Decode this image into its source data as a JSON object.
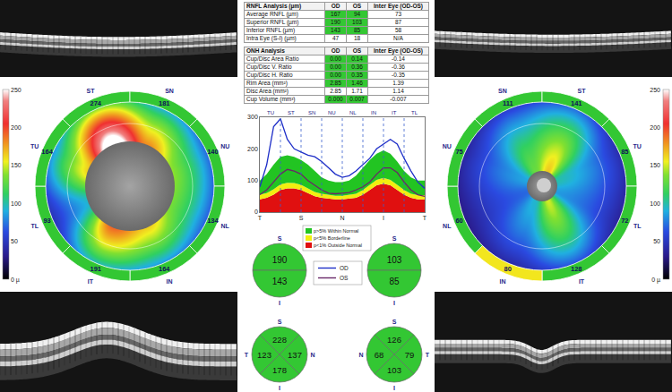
{
  "rnfl_table": {
    "header": [
      "RNFL Analysis (µm)",
      "OD",
      "OS",
      "Inter Eye (OD-OS)"
    ],
    "rows": [
      {
        "label": "Average RNFL (µm)",
        "cells": [
          {
            "text": "167",
            "status": "normal"
          },
          {
            "text": "94",
            "status": "normal"
          },
          {
            "text": "73"
          }
        ]
      },
      {
        "label": "Superior RNFL (µm)",
        "cells": [
          {
            "text": "190",
            "status": "normal"
          },
          {
            "text": "103",
            "status": "normal"
          },
          {
            "text": "87"
          }
        ]
      },
      {
        "label": "Inferior RNFL (µm)",
        "cells": [
          {
            "text": "143",
            "status": "normal"
          },
          {
            "text": "85",
            "status": "normal"
          },
          {
            "text": "58"
          }
        ]
      },
      {
        "label": "Intra Eye (S-I) (µm)",
        "cells": [
          {
            "text": "47"
          },
          {
            "text": "18"
          },
          {
            "text": "N/A"
          }
        ]
      }
    ]
  },
  "onh_table": {
    "header": [
      "ONH Analysis",
      "OD",
      "OS",
      "Inter Eye (OD-OS)"
    ],
    "rows": [
      {
        "label": "Cup/Disc Area Ratio",
        "cells": [
          {
            "text": "0.00",
            "status": "normal"
          },
          {
            "text": "0.14",
            "status": "normal"
          },
          {
            "text": "-0.14"
          }
        ]
      },
      {
        "label": "Cup/Disc V. Ratio",
        "cells": [
          {
            "text": "0.00",
            "status": "normal"
          },
          {
            "text": "0.36",
            "status": "normal"
          },
          {
            "text": "-0.36"
          }
        ]
      },
      {
        "label": "Cup/Disc H. Ratio",
        "cells": [
          {
            "text": "0.00",
            "status": "normal"
          },
          {
            "text": "0.35",
            "status": "normal"
          },
          {
            "text": "-0.35"
          }
        ]
      },
      {
        "label": "Rim Area (mm²)",
        "cells": [
          {
            "text": "2.85",
            "status": "normal"
          },
          {
            "text": "1.46",
            "status": "normal"
          },
          {
            "text": "1.39"
          }
        ]
      },
      {
        "label": "Disc Area (mm²)",
        "cells": [
          {
            "text": "2.85"
          },
          {
            "text": "1.71"
          },
          {
            "text": "1.14"
          }
        ]
      },
      {
        "label": "Cup Volume (mm³)",
        "cells": [
          {
            "text": "0.000",
            "status": "normal"
          },
          {
            "text": "0.007",
            "status": "normal"
          },
          {
            "text": "-0.007"
          }
        ]
      }
    ]
  },
  "color_scale": {
    "range": [
      0,
      250
    ],
    "ticks": [
      250,
      200,
      150,
      100,
      50,
      {
        "value": 0,
        "label": "0 µ"
      }
    ]
  },
  "thickness_maps": [
    {
      "sectors": [
        {
          "label": "ST",
          "value": 274,
          "status": "normal"
        },
        {
          "label": "SN",
          "value": 181,
          "status": "normal"
        },
        {
          "label": "NU",
          "value": 140,
          "status": "normal"
        },
        {
          "label": "NL",
          "value": 134,
          "status": "normal"
        },
        {
          "label": "IN",
          "value": 164,
          "status": "normal"
        },
        {
          "label": "IT",
          "value": 191,
          "status": "normal"
        },
        {
          "label": "TL",
          "value": 93,
          "status": "normal"
        },
        {
          "label": "TU",
          "value": 164,
          "status": "normal"
        }
      ]
    },
    {
      "sectors": [
        {
          "label": "SN",
          "value": 111,
          "status": "normal"
        },
        {
          "label": "ST",
          "value": 141,
          "status": "normal"
        },
        {
          "label": "TU",
          "value": 85,
          "status": "normal"
        },
        {
          "label": "TL",
          "value": 72,
          "status": "normal"
        },
        {
          "label": "IT",
          "value": 128,
          "status": "normal"
        },
        {
          "label": "IN",
          "value": 80,
          "status": "borderline"
        },
        {
          "label": "NL",
          "value": 60,
          "status": "normal"
        },
        {
          "label": "NU",
          "value": 75,
          "status": "normal"
        }
      ]
    }
  ],
  "chart_data": {
    "type": "line",
    "x": [
      0,
      15,
      30,
      45,
      60,
      75,
      90,
      105,
      120,
      135,
      150,
      165,
      180,
      195,
      210,
      225,
      240,
      255,
      270,
      285,
      300,
      315,
      330,
      345,
      360
    ],
    "xlim": [
      0,
      360
    ],
    "xticks": [
      {
        "value": 0,
        "label": "T"
      },
      {
        "value": 90,
        "label": "S"
      },
      {
        "value": 180,
        "label": "N"
      },
      {
        "value": 270,
        "label": "I"
      },
      {
        "value": 360,
        "label": "T"
      }
    ],
    "ylim": [
      0,
      300
    ],
    "yticks": [
      0,
      100,
      200,
      300
    ],
    "grid": false,
    "legend": "bottom",
    "sectors": [
      {
        "label": "TU",
        "start": 0,
        "end": 45
      },
      {
        "label": "ST",
        "start": 45,
        "end": 90
      },
      {
        "label": "SN",
        "start": 90,
        "end": 135
      },
      {
        "label": "NU",
        "start": 135,
        "end": 180
      },
      {
        "label": "NL",
        "start": 180,
        "end": 225
      },
      {
        "label": "IN",
        "start": 225,
        "end": 270
      },
      {
        "label": "IT",
        "start": 270,
        "end": 315
      },
      {
        "label": "TL",
        "start": 315,
        "end": 360
      }
    ],
    "series": [
      {
        "name": "p<1% Outside Normal",
        "type": "area",
        "color": "#e01010",
        "values": [
          40,
          45,
          55,
          70,
          75,
          75,
          70,
          60,
          50,
          45,
          42,
          40,
          40,
          42,
          45,
          55,
          70,
          85,
          90,
          85,
          70,
          55,
          45,
          40,
          40
        ]
      },
      {
        "name": "p<5% Borderline",
        "type": "area",
        "color": "#f2ee10",
        "values": [
          55,
          60,
          72,
          88,
          93,
          92,
          86,
          75,
          64,
          58,
          54,
          52,
          52,
          54,
          58,
          70,
          86,
          102,
          108,
          102,
          86,
          70,
          58,
          54,
          54
        ]
      },
      {
        "name": "p>5% Within Normal",
        "type": "area",
        "color": "#22c422",
        "values": [
          100,
          120,
          150,
          175,
          180,
          175,
          165,
          150,
          130,
          110,
          100,
          95,
          95,
          100,
          115,
          140,
          165,
          185,
          195,
          185,
          160,
          130,
          110,
          100,
          100
        ]
      },
      {
        "name": "OD",
        "type": "line",
        "color": "#1f2fc8",
        "values": [
          80,
          150,
          270,
          295,
          230,
          200,
          190,
          180,
          175,
          160,
          140,
          120,
          110,
          115,
          130,
          150,
          170,
          200,
          215,
          230,
          215,
          170,
          130,
          95,
          75
        ]
      },
      {
        "name": "OS",
        "type": "line",
        "color": "#6a2868",
        "values": [
          55,
          70,
          95,
          120,
          135,
          130,
          120,
          100,
          85,
          70,
          60,
          58,
          60,
          62,
          70,
          80,
          95,
          120,
          140,
          140,
          125,
          95,
          70,
          55,
          50
        ]
      }
    ]
  },
  "sector_charts": [
    {
      "kind": "hemisphere",
      "sectors": [
        {
          "label": "S",
          "value": 190,
          "status": "normal"
        },
        {
          "label": "I",
          "value": 143,
          "status": "normal"
        }
      ]
    },
    {
      "kind": "hemisphere",
      "sectors": [
        {
          "label": "S",
          "value": 103,
          "status": "normal"
        },
        {
          "label": "I",
          "value": 85,
          "status": "normal"
        }
      ]
    },
    {
      "kind": "quadrant",
      "sectors": [
        {
          "label": "S",
          "value": 228,
          "status": "normal"
        },
        {
          "label": "T",
          "value": 123,
          "status": "normal"
        },
        {
          "label": "N",
          "value": 137,
          "status": "normal"
        },
        {
          "label": "I",
          "value": 178,
          "status": "normal"
        }
      ]
    },
    {
      "kind": "quadrant",
      "sectors": [
        {
          "label": "S",
          "value": 126,
          "status": "normal"
        },
        {
          "label": "N",
          "value": 68,
          "status": "normal"
        },
        {
          "label": "T",
          "value": 79,
          "status": "normal"
        },
        {
          "label": "I",
          "value": 103,
          "status": "normal"
        }
      ]
    }
  ]
}
